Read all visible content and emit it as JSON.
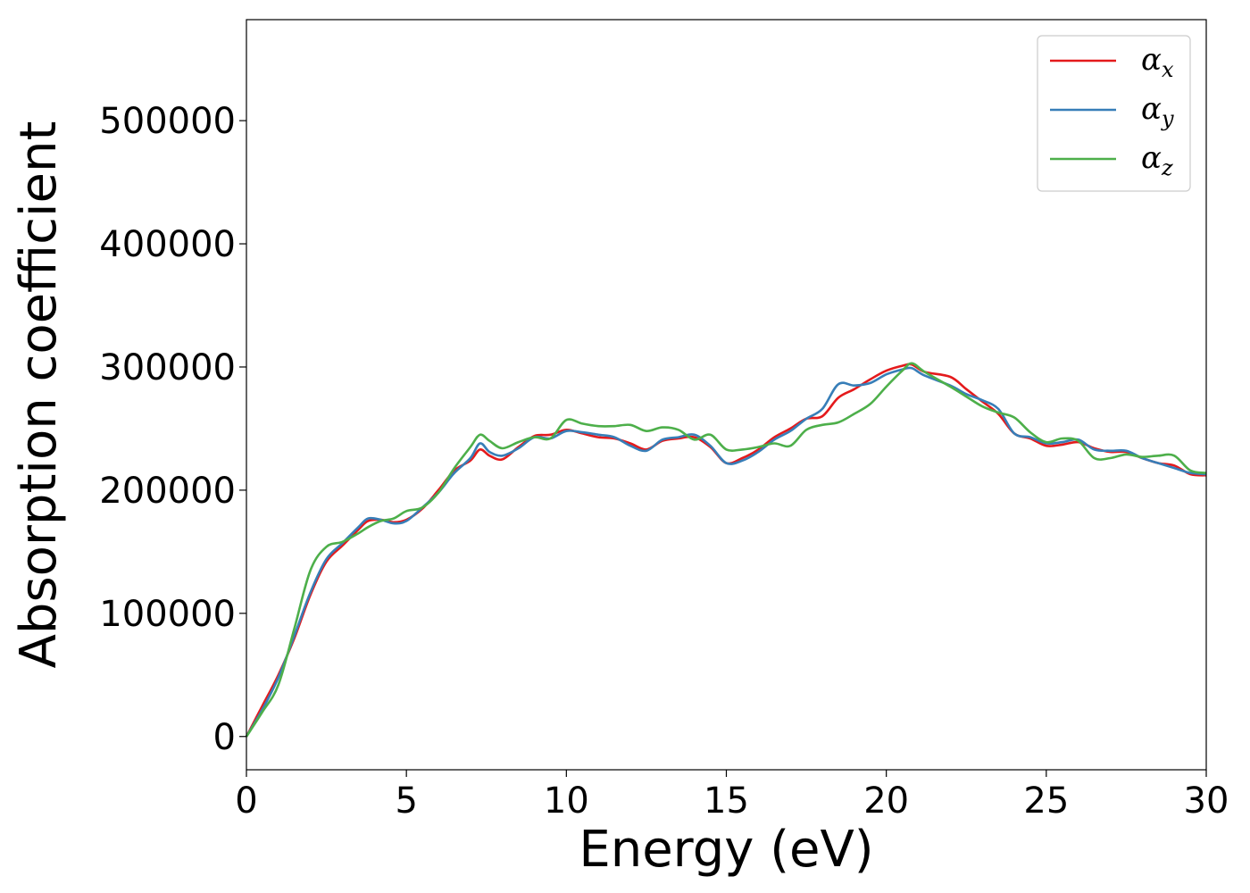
{
  "chart_data": {
    "type": "line",
    "xlabel": "Energy (eV)",
    "ylabel": "Absorption coefficient",
    "xlim": [
      0,
      30
    ],
    "ylim": [
      -27000,
      582000
    ],
    "xticks": [
      0,
      5,
      10,
      15,
      20,
      25,
      30
    ],
    "yticks": [
      0,
      100000,
      200000,
      300000,
      400000,
      500000
    ],
    "xtick_labels": [
      "0",
      "5",
      "10",
      "15",
      "20",
      "25",
      "30"
    ],
    "ytick_labels": [
      "0",
      "100000",
      "200000",
      "300000",
      "400000",
      "500000"
    ],
    "grid": false,
    "legend_position": "top-right",
    "series": [
      {
        "name": "αx",
        "symbol": "α",
        "subscript": "x",
        "color": "#e41a1c",
        "x": [
          0,
          0.5,
          1,
          1.5,
          2,
          2.5,
          3,
          3.5,
          3.8,
          4.2,
          4.6,
          5,
          5.5,
          6,
          6.5,
          7,
          7.3,
          7.6,
          8,
          8.5,
          9,
          9.5,
          10,
          10.5,
          11,
          11.5,
          12,
          12.5,
          13,
          13.5,
          14,
          14.5,
          15,
          15.5,
          16,
          16.5,
          17,
          17.5,
          18,
          18.5,
          19,
          19.5,
          20,
          20.5,
          20.8,
          21.2,
          22,
          22.5,
          23,
          23.5,
          24,
          24.5,
          25,
          25.5,
          26,
          26.5,
          27,
          27.5,
          28,
          28.5,
          29,
          29.5,
          30
        ],
        "y": [
          0,
          25000,
          50000,
          80000,
          115000,
          142000,
          155000,
          168000,
          175000,
          176000,
          174000,
          176000,
          185000,
          200000,
          216000,
          224000,
          233000,
          228000,
          225000,
          235000,
          244000,
          245000,
          249000,
          246000,
          243000,
          242000,
          238000,
          233000,
          240000,
          242000,
          243000,
          235000,
          222000,
          226000,
          233000,
          243000,
          250000,
          258000,
          260000,
          275000,
          282000,
          290000,
          297000,
          301000,
          302000,
          296000,
          292000,
          282000,
          272000,
          262000,
          246000,
          242000,
          236000,
          237000,
          239000,
          234000,
          231000,
          231000,
          226000,
          222000,
          220000,
          213000,
          212000
        ]
      },
      {
        "name": "αy",
        "symbol": "α",
        "subscript": "y",
        "color": "#377eb8",
        "x": [
          0,
          0.5,
          1,
          1.5,
          2,
          2.5,
          3,
          3.5,
          3.8,
          4.2,
          4.6,
          5,
          5.5,
          6,
          6.5,
          7,
          7.3,
          7.6,
          8,
          8.5,
          9,
          9.5,
          10,
          10.5,
          11,
          11.5,
          12,
          12.5,
          13,
          13.5,
          14,
          14.5,
          15,
          15.5,
          16,
          16.5,
          17,
          17.5,
          18,
          18.5,
          19,
          19.5,
          20,
          20.5,
          20.8,
          21.2,
          22,
          22.5,
          23,
          23.5,
          24,
          24.5,
          25,
          25.5,
          26,
          26.5,
          27,
          27.5,
          28,
          28.5,
          29,
          29.5,
          30
        ],
        "y": [
          0,
          22000,
          48000,
          82000,
          117000,
          144000,
          157000,
          170000,
          177000,
          176000,
          173000,
          175000,
          186000,
          198000,
          214000,
          226000,
          238000,
          231000,
          228000,
          234000,
          243000,
          242000,
          248000,
          247000,
          245000,
          243000,
          236000,
          232000,
          241000,
          243000,
          245000,
          236000,
          222000,
          224000,
          231000,
          241000,
          248000,
          258000,
          266000,
          286000,
          285000,
          287000,
          294000,
          298000,
          299000,
          293000,
          285000,
          278000,
          273000,
          266000,
          246000,
          243000,
          238000,
          239000,
          241000,
          233000,
          232000,
          232000,
          226000,
          222000,
          218000,
          214000,
          213000
        ]
      },
      {
        "name": "αz",
        "symbol": "α",
        "subscript": "z",
        "color": "#4daf4a",
        "x": [
          0,
          0.5,
          1,
          1.5,
          2,
          2.5,
          3,
          3.5,
          3.8,
          4.2,
          4.6,
          5,
          5.5,
          6,
          6.5,
          7,
          7.3,
          7.6,
          8,
          8.5,
          9,
          9.5,
          10,
          10.5,
          11,
          11.5,
          12,
          12.5,
          13,
          13.5,
          14,
          14.5,
          15,
          15.5,
          16,
          16.5,
          17,
          17.5,
          18,
          18.5,
          19,
          19.5,
          20,
          20.5,
          20.8,
          21.2,
          22,
          22.5,
          23,
          23.5,
          24,
          24.5,
          25,
          25.5,
          26,
          26.5,
          27,
          27.5,
          28,
          28.5,
          29,
          29.5,
          30
        ],
        "y": [
          0,
          20000,
          42000,
          88000,
          135000,
          154000,
          158000,
          165000,
          170000,
          175000,
          177000,
          183000,
          186000,
          198000,
          218000,
          235000,
          245000,
          240000,
          234000,
          239000,
          243000,
          242000,
          257000,
          254000,
          252000,
          252000,
          253000,
          248000,
          251000,
          249000,
          241000,
          245000,
          233000,
          233000,
          235000,
          238000,
          236000,
          249000,
          253000,
          255000,
          262000,
          270000,
          284000,
          297000,
          303000,
          296000,
          284000,
          276000,
          268000,
          263000,
          259000,
          247000,
          239000,
          242000,
          240000,
          226000,
          226000,
          229000,
          227000,
          228000,
          228000,
          216000,
          214000
        ]
      }
    ]
  }
}
